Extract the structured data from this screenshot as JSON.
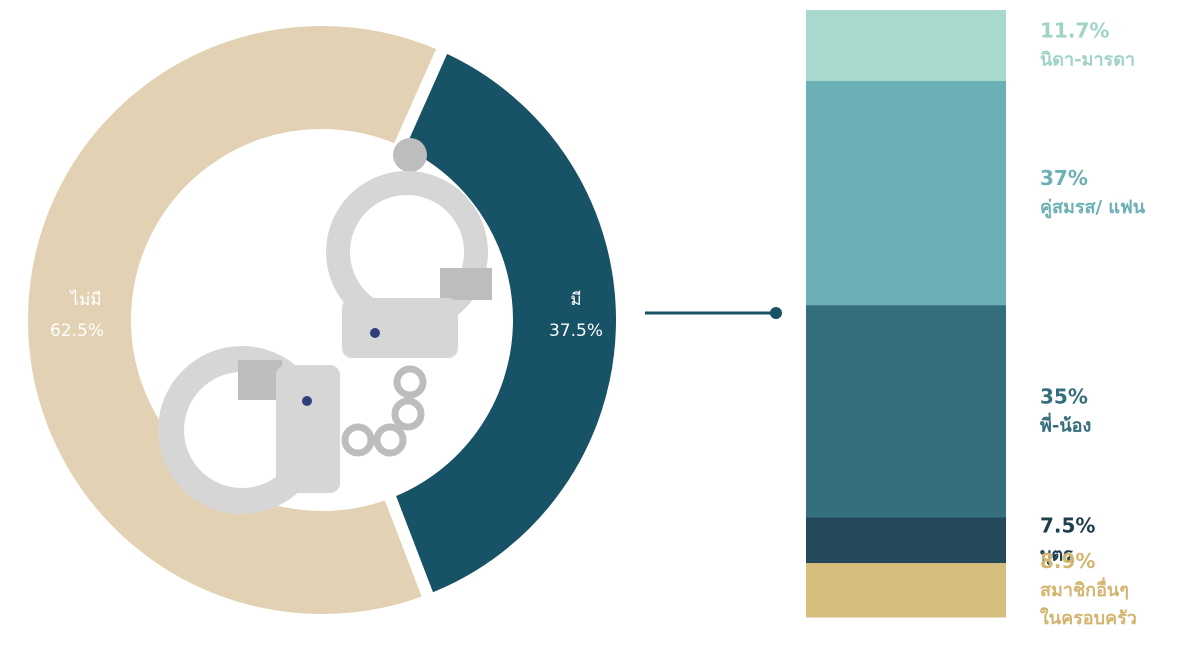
{
  "chart_data": [
    {
      "type": "pie",
      "slices": [
        {
          "label": "ไม่มี",
          "value": 62.5,
          "value_label": "62.5%",
          "color": "#E3D1B3"
        },
        {
          "label": "มี",
          "value": 37.5,
          "value_label": "37.5%",
          "color": "#175266"
        }
      ]
    },
    {
      "type": "bar",
      "stacked": true,
      "categories": [
        "นิดา-มารดา",
        "คู่สมรส/ แฟน",
        "พี่-น้อง",
        "บุตร",
        "สมาชิกอื่นๆ ในครอบครัว"
      ],
      "values": [
        11.7,
        37,
        35,
        7.5,
        8.9
      ],
      "value_labels": [
        "11.7%",
        "37%",
        "35%",
        "7.5%",
        "8.9%"
      ],
      "colors": [
        "#A8D9CE",
        "#6BB0B5",
        "#356E7D",
        "#244A5A",
        "#D8BE7D"
      ],
      "label_colors": [
        "#9ED3C6",
        "#6BB0B5",
        "#356E7D",
        "#1E3F4E",
        "#D3B570"
      ]
    }
  ],
  "icons": [
    "handcuffs-icon"
  ]
}
